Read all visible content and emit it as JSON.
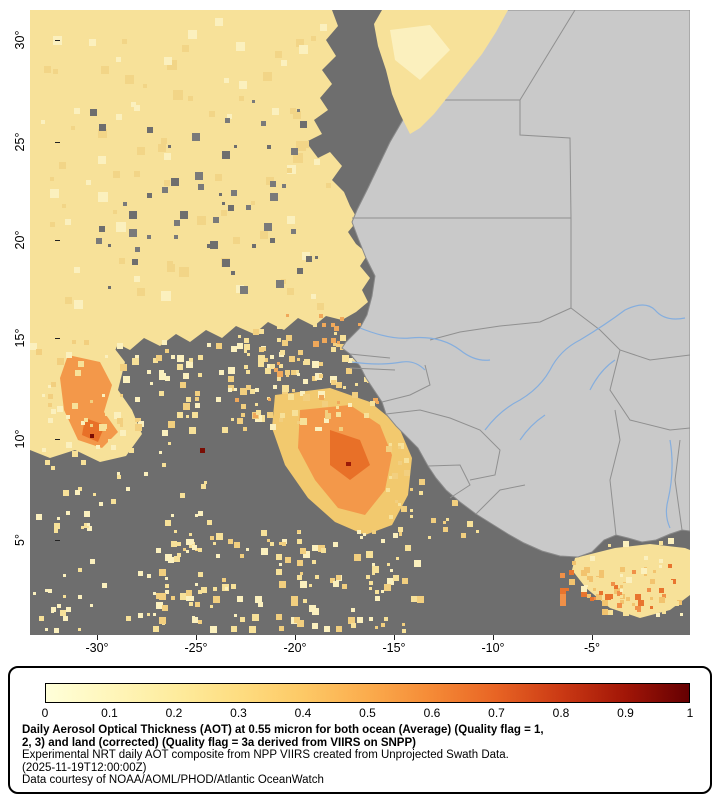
{
  "map": {
    "y_axis_labels": [
      "30°",
      "25°",
      "20°",
      "15°",
      "10°",
      "5°"
    ],
    "x_axis_labels": [
      "-30°",
      "-25°",
      "-20°",
      "-15°",
      "-10°",
      "-5°"
    ]
  },
  "legend": {
    "tick_labels": [
      "0",
      "0.1",
      "0.2",
      "0.3",
      "0.4",
      "0.5",
      "0.6",
      "0.7",
      "0.8",
      "0.9",
      "1"
    ],
    "caption_title_line1": "Daily Aerosol Optical Thickness (AOT) at 0.55 micron for both ocean (Average) (Quality flag = 1,",
    "caption_title_line2": "2, 3) and land (corrected) (Quality flag = 3a derived from VIIRS on SNPP)",
    "caption_description": "Experimental NRT daily AOT composite from NPP VIIRS created from Unprojected Swath Data.",
    "caption_timestamp": "(2025-11-19T12:00:00Z)",
    "caption_credit": "Data courtesy of NOAA/AOML/PHOD/Atlantic OceanWatch"
  },
  "colors": {
    "colorbar_scale": [
      "#FFFFD9",
      "#FFF6BB",
      "#FEEC9E",
      "#FEDD81",
      "#FDC966",
      "#FBAC4D",
      "#F58A36",
      "#E86424",
      "#CB3A14",
      "#A21607",
      "#650002"
    ],
    "ocean_no_data": "#6E6E6E",
    "land": "#C9C9C9",
    "river": "#85AEDE",
    "border": "#8A8A8A"
  }
}
